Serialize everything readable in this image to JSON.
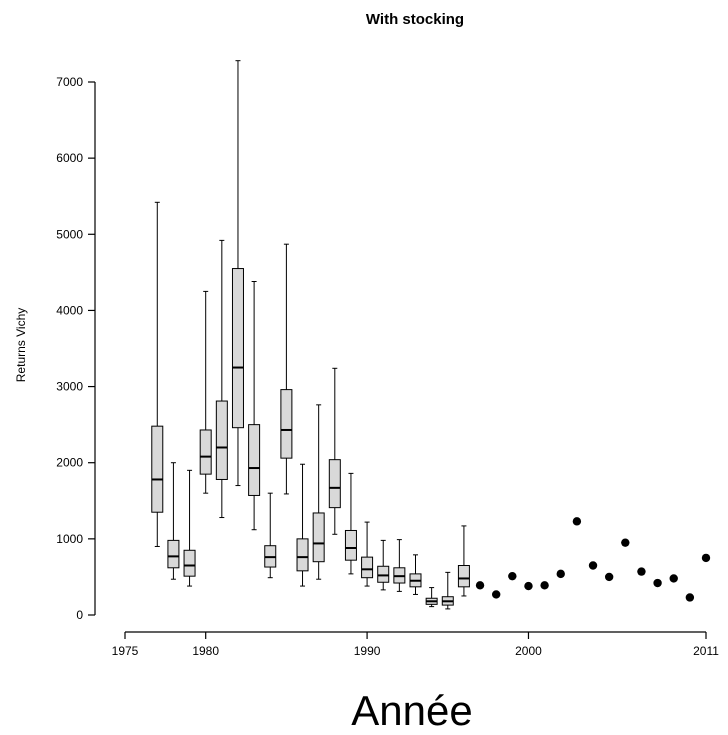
{
  "chart_data": {
    "type": "box",
    "title": "With stocking",
    "xlabel": "Année",
    "ylabel": "Returns Vichy",
    "xlim": [
      1975,
      2011
    ],
    "ylim": [
      0,
      7000
    ],
    "x_ticks": [
      1975,
      1980,
      1990,
      2000,
      2011
    ],
    "y_ticks": [
      0,
      1000,
      2000,
      3000,
      4000,
      5000,
      6000,
      7000
    ],
    "boxes": [
      {
        "year": 1977,
        "min": 900,
        "q1": 1350,
        "median": 1780,
        "q3": 2480,
        "max": 5420
      },
      {
        "year": 1978,
        "min": 470,
        "q1": 620,
        "median": 770,
        "q3": 980,
        "max": 2000
      },
      {
        "year": 1979,
        "min": 380,
        "q1": 510,
        "median": 650,
        "q3": 850,
        "max": 1900
      },
      {
        "year": 1980,
        "min": 1600,
        "q1": 1850,
        "median": 2080,
        "q3": 2430,
        "max": 4250
      },
      {
        "year": 1981,
        "min": 1280,
        "q1": 1780,
        "median": 2200,
        "q3": 2810,
        "max": 4920
      },
      {
        "year": 1982,
        "min": 1700,
        "q1": 2460,
        "median": 3250,
        "q3": 4550,
        "max": 7280
      },
      {
        "year": 1983,
        "min": 1120,
        "q1": 1570,
        "median": 1930,
        "q3": 2500,
        "max": 4380
      },
      {
        "year": 1984,
        "min": 490,
        "q1": 630,
        "median": 760,
        "q3": 910,
        "max": 1600
      },
      {
        "year": 1985,
        "min": 1590,
        "q1": 2060,
        "median": 2430,
        "q3": 2960,
        "max": 4870
      },
      {
        "year": 1986,
        "min": 380,
        "q1": 580,
        "median": 760,
        "q3": 1000,
        "max": 1980
      },
      {
        "year": 1987,
        "min": 470,
        "q1": 700,
        "median": 940,
        "q3": 1340,
        "max": 2760
      },
      {
        "year": 1988,
        "min": 1060,
        "q1": 1410,
        "median": 1670,
        "q3": 2040,
        "max": 3240
      },
      {
        "year": 1989,
        "min": 540,
        "q1": 720,
        "median": 880,
        "q3": 1110,
        "max": 1860
      },
      {
        "year": 1990,
        "min": 380,
        "q1": 490,
        "median": 600,
        "q3": 760,
        "max": 1220
      },
      {
        "year": 1991,
        "min": 330,
        "q1": 430,
        "median": 520,
        "q3": 640,
        "max": 980
      },
      {
        "year": 1992,
        "min": 310,
        "q1": 420,
        "median": 510,
        "q3": 620,
        "max": 990
      },
      {
        "year": 1993,
        "min": 270,
        "q1": 370,
        "median": 450,
        "q3": 540,
        "max": 790
      },
      {
        "year": 1994,
        "min": 110,
        "q1": 140,
        "median": 180,
        "q3": 220,
        "max": 360
      },
      {
        "year": 1995,
        "min": 80,
        "q1": 130,
        "median": 180,
        "q3": 240,
        "max": 560
      },
      {
        "year": 1996,
        "min": 250,
        "q1": 370,
        "median": 480,
        "q3": 650,
        "max": 1170
      }
    ],
    "points": [
      {
        "year": 1997,
        "value": 390
      },
      {
        "year": 1998,
        "value": 270
      },
      {
        "year": 1999,
        "value": 510
      },
      {
        "year": 2000,
        "value": 380
      },
      {
        "year": 2001,
        "value": 390
      },
      {
        "year": 2002,
        "value": 540
      },
      {
        "year": 2003,
        "value": 1230
      },
      {
        "year": 2004,
        "value": 650
      },
      {
        "year": 2005,
        "value": 500
      },
      {
        "year": 2006,
        "value": 950
      },
      {
        "year": 2007,
        "value": 570
      },
      {
        "year": 2008,
        "value": 420
      },
      {
        "year": 2009,
        "value": 480
      },
      {
        "year": 2010,
        "value": 230
      },
      {
        "year": 2011,
        "value": 750
      }
    ],
    "box_fill": "#d9d9d9",
    "point_color": "#000000",
    "grid": false
  }
}
